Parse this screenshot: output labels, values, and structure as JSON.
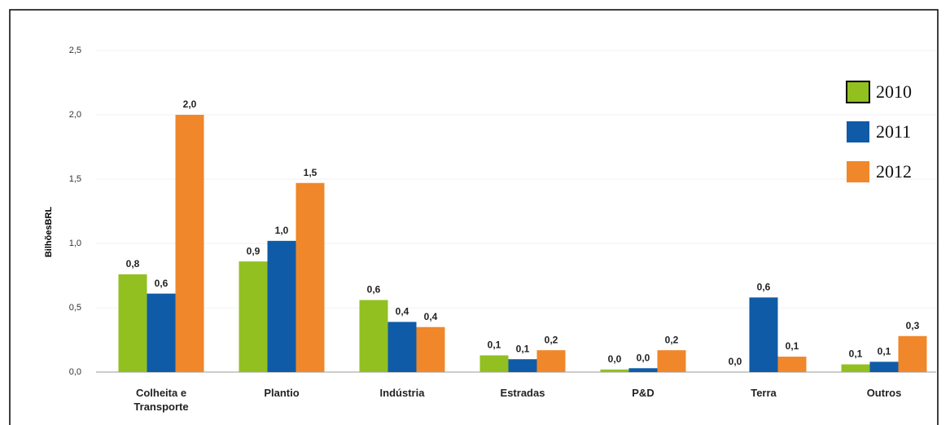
{
  "chart_data": {
    "type": "bar",
    "y_label": "BilhõesBRL",
    "categories": [
      "Colheita e Transporte",
      "Plantio",
      "Indústria",
      "Estradas",
      "P&D",
      "Terra",
      "Outros"
    ],
    "series": [
      {
        "name": "2010",
        "color": "#92c021",
        "values": [
          0.76,
          0.86,
          0.56,
          0.13,
          0.02,
          0,
          0.06
        ],
        "value_labels": [
          "0,8",
          "0,9",
          "0,6",
          "0,1",
          "0,0",
          "0,0",
          "0,1"
        ]
      },
      {
        "name": "2011",
        "color": "#0f5ba7",
        "values": [
          0.61,
          1.02,
          0.39,
          0.1,
          0.03,
          0.58,
          0.08
        ],
        "value_labels": [
          "0,6",
          "1,0",
          "0,4",
          "0,1",
          "0,0",
          "0,6",
          "0,1"
        ]
      },
      {
        "name": "2012",
        "color": "#f0872a",
        "values": [
          2.0,
          1.47,
          0.35,
          0.17,
          0.17,
          0.12,
          0.28
        ],
        "value_labels": [
          "2,0",
          "1,5",
          "0,4",
          "0,2",
          "0,2",
          "0,1",
          "0,3"
        ]
      }
    ],
    "ylim": [
      0,
      2.5
    ],
    "yticks": [
      {
        "value": 0,
        "label": "0,0"
      },
      {
        "value": 0.5,
        "label": "0,5"
      },
      {
        "value": 1,
        "label": "1,0"
      },
      {
        "value": 1.5,
        "label": "1,5"
      },
      {
        "value": 2,
        "label": "2,0"
      },
      {
        "value": 2.5,
        "label": "2,5"
      }
    ],
    "grid": true,
    "legend": "top-right"
  }
}
